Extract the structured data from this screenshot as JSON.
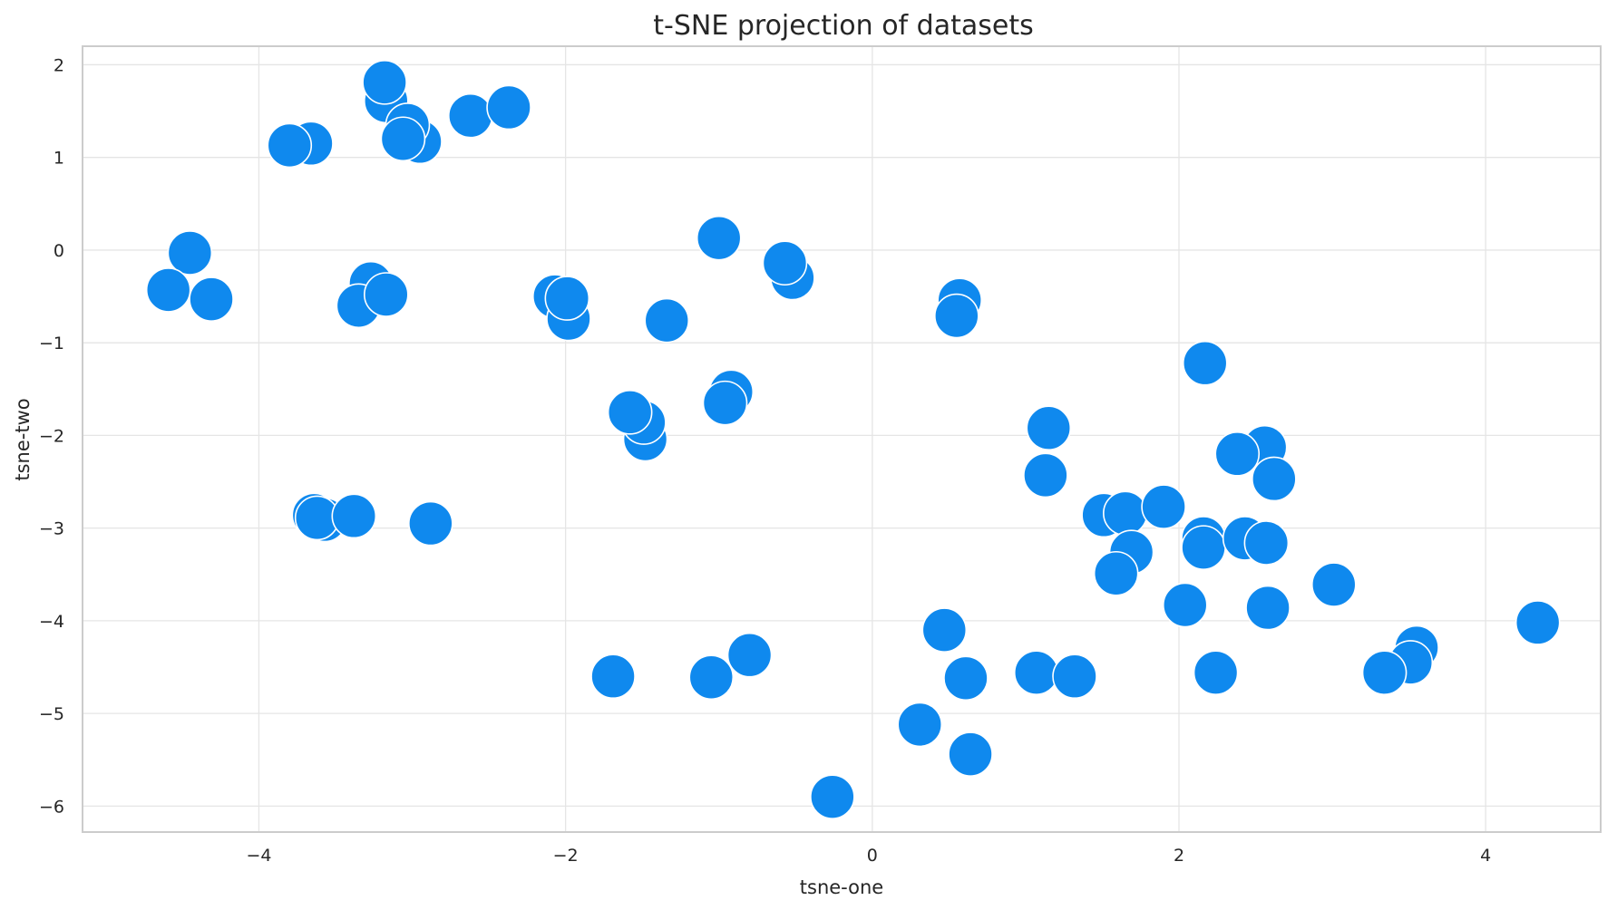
{
  "chart_data": {
    "type": "scatter",
    "title": "t-SNE projection of datasets",
    "xlabel": "tsne-one",
    "ylabel": "tsne-two",
    "xlim": [
      -5.15,
      4.75
    ],
    "ylim": [
      -6.28,
      2.2
    ],
    "xticks": [
      -4,
      -2,
      0,
      2,
      4
    ],
    "yticks": [
      -6,
      -5,
      -4,
      -3,
      -2,
      -1,
      0,
      1,
      2
    ],
    "xtick_labels": [
      "−4",
      "−2",
      "0",
      "2",
      "4"
    ],
    "ytick_labels": [
      "−6",
      "−5",
      "−4",
      "−3",
      "−2",
      "−1",
      "0",
      "1",
      "2"
    ],
    "grid": true,
    "color": "#0f89ee",
    "points": [
      {
        "x": -3.17,
        "y": 1.61
      },
      {
        "x": -3.18,
        "y": 1.81
      },
      {
        "x": -2.95,
        "y": 1.17
      },
      {
        "x": -3.03,
        "y": 1.35
      },
      {
        "x": -3.06,
        "y": 1.2
      },
      {
        "x": -2.62,
        "y": 1.45
      },
      {
        "x": -2.37,
        "y": 1.54
      },
      {
        "x": -3.66,
        "y": 1.15
      },
      {
        "x": -3.8,
        "y": 1.13
      },
      {
        "x": -4.45,
        "y": -0.03
      },
      {
        "x": -4.59,
        "y": -0.43
      },
      {
        "x": -4.31,
        "y": -0.53
      },
      {
        "x": -3.27,
        "y": -0.36
      },
      {
        "x": -3.35,
        "y": -0.6
      },
      {
        "x": -3.17,
        "y": -0.48
      },
      {
        "x": -2.07,
        "y": -0.5
      },
      {
        "x": -1.98,
        "y": -0.74
      },
      {
        "x": -1.99,
        "y": -0.52
      },
      {
        "x": -1.34,
        "y": -0.76
      },
      {
        "x": -1.0,
        "y": 0.13
      },
      {
        "x": -0.52,
        "y": -0.3
      },
      {
        "x": -0.57,
        "y": -0.14
      },
      {
        "x": 0.57,
        "y": -0.54
      },
      {
        "x": 0.55,
        "y": -0.71
      },
      {
        "x": -0.92,
        "y": -1.53
      },
      {
        "x": -0.96,
        "y": -1.65
      },
      {
        "x": -1.48,
        "y": -2.04
      },
      {
        "x": -1.49,
        "y": -1.86
      },
      {
        "x": -1.58,
        "y": -1.75
      },
      {
        "x": -3.64,
        "y": -2.86
      },
      {
        "x": -3.57,
        "y": -2.91
      },
      {
        "x": -3.62,
        "y": -2.89
      },
      {
        "x": -3.38,
        "y": -2.87
      },
      {
        "x": -2.88,
        "y": -2.95
      },
      {
        "x": -1.69,
        "y": -4.6
      },
      {
        "x": -1.05,
        "y": -4.61
      },
      {
        "x": -0.8,
        "y": -4.37
      },
      {
        "x": -0.26,
        "y": -5.9
      },
      {
        "x": 0.31,
        "y": -5.12
      },
      {
        "x": 0.64,
        "y": -5.44
      },
      {
        "x": 0.47,
        "y": -4.1
      },
      {
        "x": 0.61,
        "y": -4.62
      },
      {
        "x": 1.07,
        "y": -4.56
      },
      {
        "x": 1.32,
        "y": -4.6
      },
      {
        "x": 1.15,
        "y": -1.92
      },
      {
        "x": 1.13,
        "y": -2.43
      },
      {
        "x": 2.17,
        "y": -1.22
      },
      {
        "x": 2.56,
        "y": -2.13
      },
      {
        "x": 2.38,
        "y": -2.2
      },
      {
        "x": 2.62,
        "y": -2.47
      },
      {
        "x": 1.51,
        "y": -2.86
      },
      {
        "x": 1.65,
        "y": -2.84
      },
      {
        "x": 1.9,
        "y": -2.77
      },
      {
        "x": 1.69,
        "y": -3.26
      },
      {
        "x": 1.59,
        "y": -3.49
      },
      {
        "x": 2.16,
        "y": -3.11
      },
      {
        "x": 2.16,
        "y": -3.21
      },
      {
        "x": 2.43,
        "y": -3.11
      },
      {
        "x": 2.57,
        "y": -3.16
      },
      {
        "x": 2.04,
        "y": -3.83
      },
      {
        "x": 2.58,
        "y": -3.86
      },
      {
        "x": 3.01,
        "y": -3.61
      },
      {
        "x": 2.24,
        "y": -4.56
      },
      {
        "x": 3.55,
        "y": -4.29
      },
      {
        "x": 3.51,
        "y": -4.45
      },
      {
        "x": 3.34,
        "y": -4.56
      },
      {
        "x": 4.34,
        "y": -4.02
      }
    ]
  }
}
